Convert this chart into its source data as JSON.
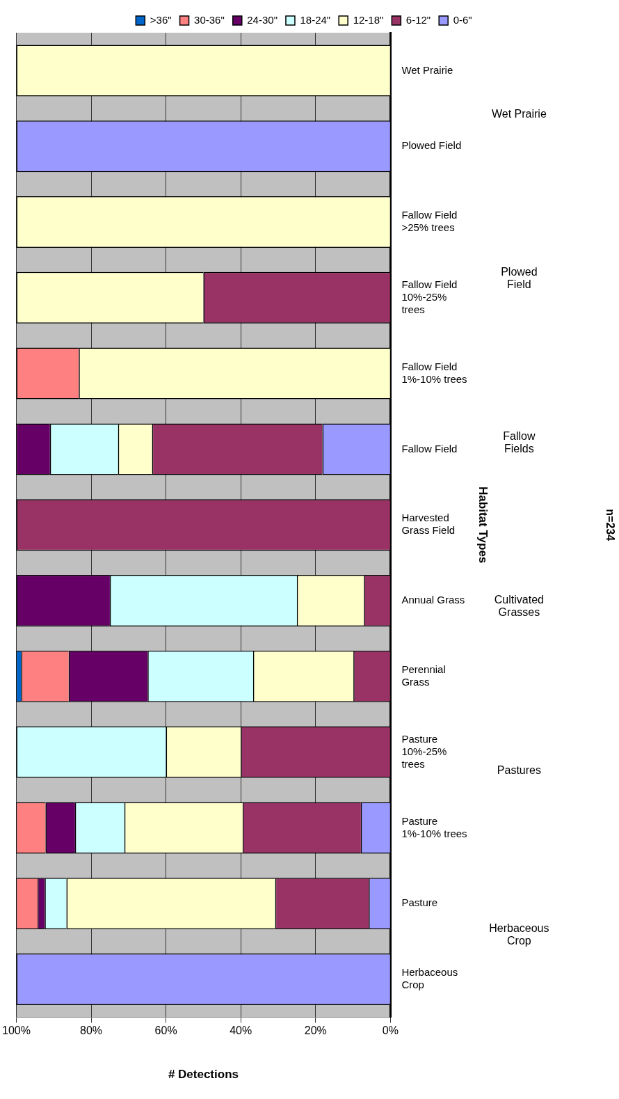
{
  "chart_data": {
    "type": "bar",
    "orientation": "horizontal",
    "stacked": true,
    "categories": [
      "Wet Prairie",
      "Plowed Field",
      "Fallow Field >25% trees",
      "Fallow Field 10%-25% trees",
      "Fallow Field 1%-10% trees",
      "Fallow Field",
      "Harvested Grass Field",
      "Annual Grass",
      "Perennial Grass",
      "Pasture 10%-25% trees",
      "Pasture 1%-10% trees",
      "Pasture",
      "Herbaceous Crop"
    ],
    "series": [
      {
        "name": "0-6\"",
        "color": "#9999ff",
        "values": [
          0,
          100,
          0,
          0,
          0,
          18.2,
          0,
          0,
          0,
          0,
          7.9,
          5.8,
          100
        ]
      },
      {
        "name": "6-12\"",
        "color": "#993366",
        "values": [
          0,
          0,
          0,
          50,
          0,
          45.5,
          100,
          7.1,
          9.9,
          40,
          31.6,
          25,
          0
        ]
      },
      {
        "name": "12-18\"",
        "color": "#ffffcc",
        "values": [
          100,
          0,
          100,
          50,
          83.3,
          9.1,
          0,
          17.9,
          26.8,
          20,
          31.6,
          55.8,
          0
        ]
      },
      {
        "name": "18-24\"",
        "color": "#ccffff",
        "values": [
          0,
          0,
          0,
          0,
          0,
          18.2,
          0,
          50,
          28.2,
          40,
          13.2,
          5.8,
          0
        ]
      },
      {
        "name": "24-30\"",
        "color": "#660066",
        "values": [
          0,
          0,
          0,
          0,
          0,
          9.1,
          0,
          25,
          21.1,
          0,
          7.9,
          1.9,
          0
        ]
      },
      {
        "name": "30-36\"",
        "color": "#ff8080",
        "values": [
          0,
          0,
          0,
          0,
          16.7,
          0,
          0,
          0,
          12.7,
          0,
          7.9,
          5.8,
          0
        ]
      },
      {
        "name": ">36\"",
        "color": "#0066cc",
        "values": [
          0,
          0,
          0,
          0,
          0,
          0,
          0,
          0,
          1.4,
          0,
          0,
          0,
          0
        ]
      }
    ],
    "xlim": [
      100,
      0
    ],
    "xticks": [
      {
        "value": 100,
        "label": "100%"
      },
      {
        "value": 80,
        "label": "80%"
      },
      {
        "value": 60,
        "label": "60%"
      },
      {
        "value": 40,
        "label": "40%"
      },
      {
        "value": 20,
        "label": "20%"
      },
      {
        "value": 0,
        "label": "0%"
      }
    ],
    "xlabel": "# Detections",
    "ylabel": "Habitat Types",
    "annotations": [
      "Wet Prairie",
      "Plowed Field",
      "Fallow Fields",
      "Cultivated Grasses",
      "Pastures",
      "Herbaceous Crop",
      "n=234"
    ],
    "grid": "x",
    "legend": "top"
  }
}
